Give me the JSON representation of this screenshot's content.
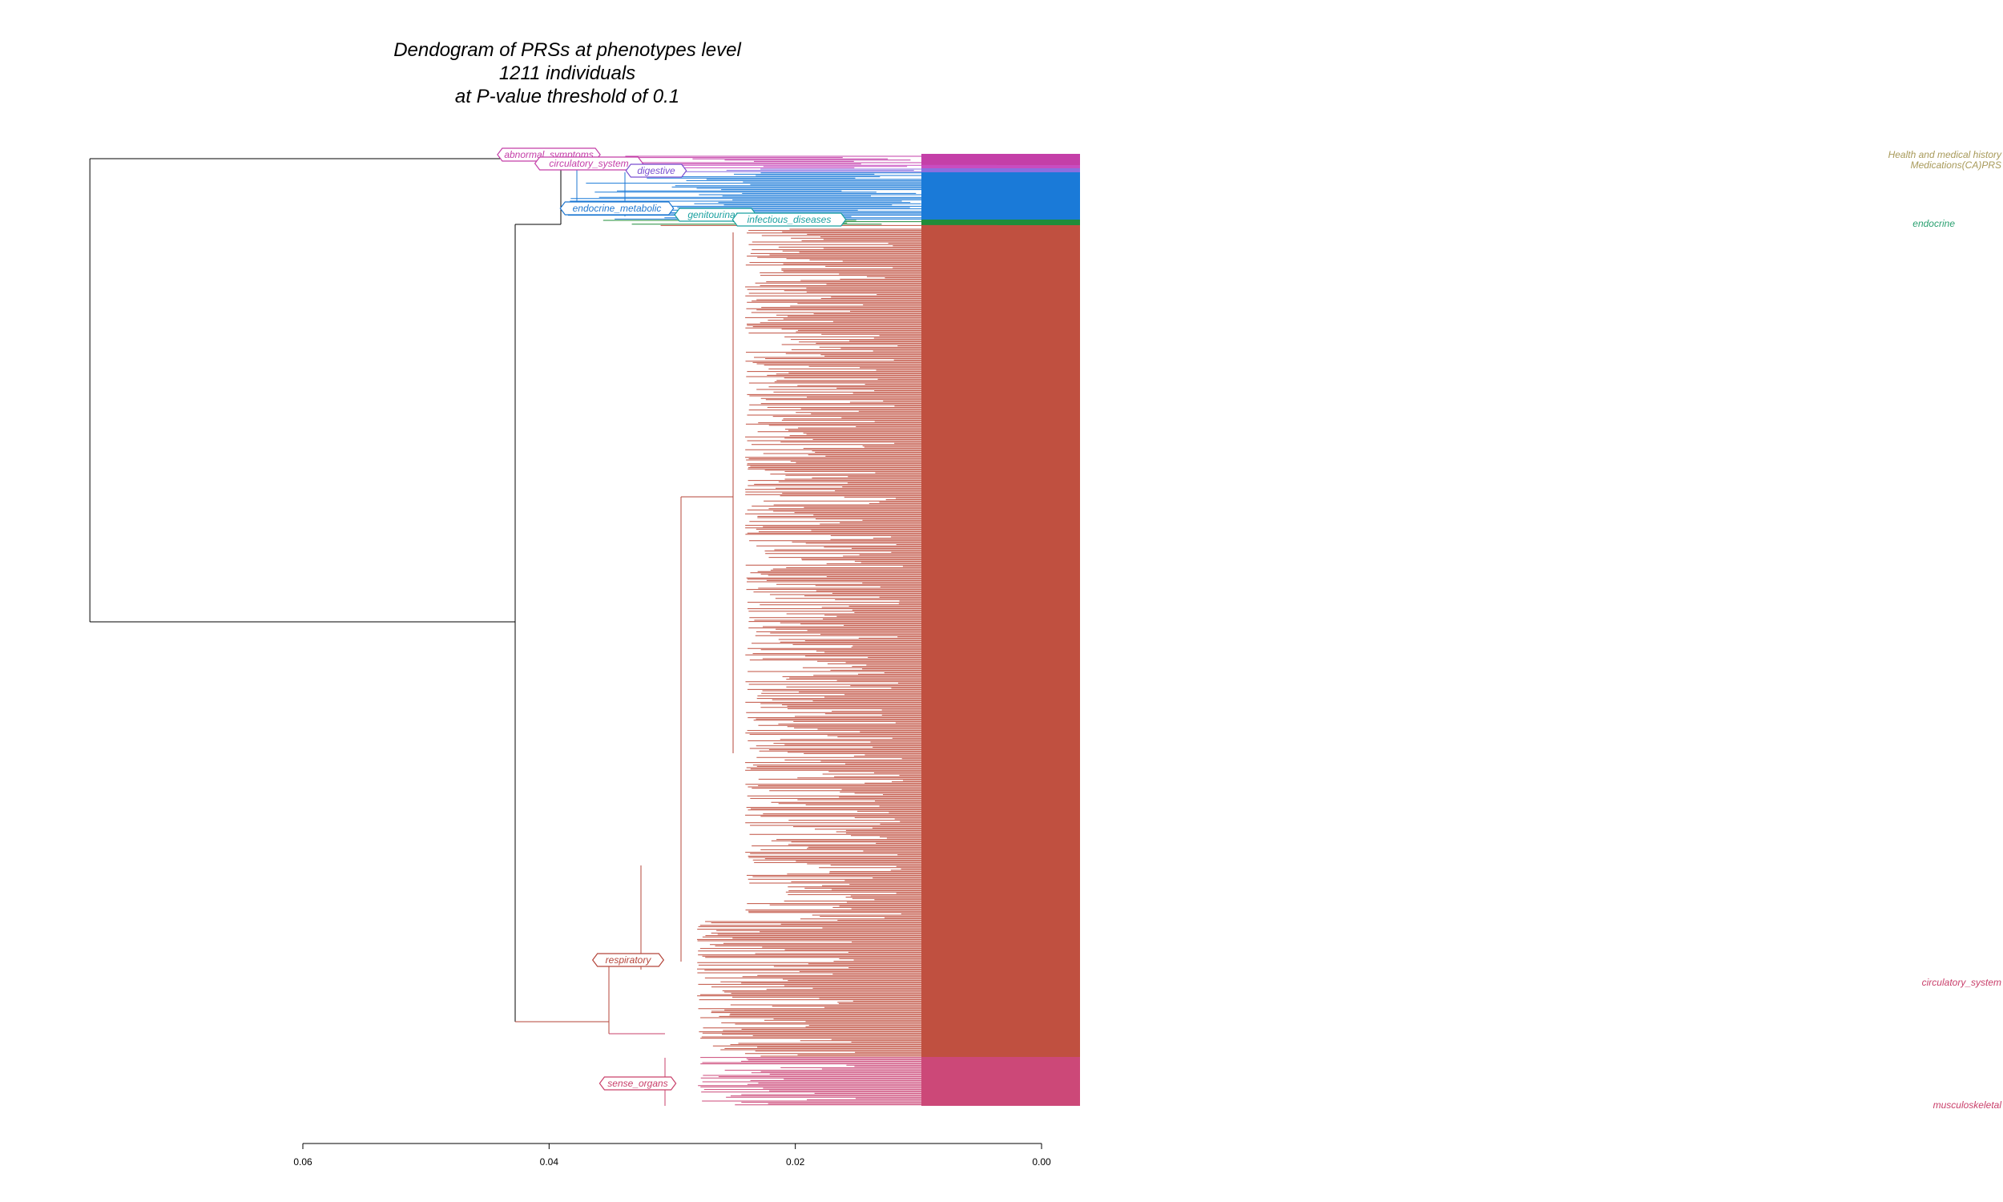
{
  "chart_data": {
    "type": "dendrogram",
    "title_lines": [
      "Dendogram of PRSs at phenotypes level",
      "1211 individuals",
      "at P-value threshold of 0.1"
    ],
    "orientation": "horizontal",
    "x_axis": {
      "ticks": [
        0.06,
        0.04,
        0.02,
        0.0
      ],
      "tick_labels": [
        "0.06",
        "0.04",
        "0.02",
        "0.00"
      ],
      "range": [
        0.06,
        0.0
      ],
      "label": ""
    },
    "root_height": 0.0773,
    "clusters": [
      {
        "name": "abnormal_symptoms",
        "label": "abnormal_symptoms",
        "color": "#c43fa8",
        "height": 0.0443
      },
      {
        "name": "circulatory_system",
        "label": "circulatory_system",
        "color": "#c43fa8",
        "height": 0.0375
      },
      {
        "name": "digestive",
        "label": "digestive",
        "color": "#7a4fd0",
        "height": 0.031
      },
      {
        "name": "endocrine_metabolic",
        "label": "endocrine_metabolic",
        "color": "#1f77d0",
        "height": 0.0395
      },
      {
        "name": "genitourinary",
        "label": "genitourinary",
        "color": "#1aa0a0",
        "height": 0.028
      },
      {
        "name": "infectious_diseases",
        "label": "infectious_diseases",
        "color": "#1aa0a0",
        "height": 0.027
      },
      {
        "name": "respiratory",
        "label": "respiratory",
        "color": "#b5453a",
        "height": 0.0345
      },
      {
        "name": "sense_organs",
        "label": "sense_organs",
        "color": "#c9406b",
        "height": 0.0345
      }
    ],
    "color_bands": [
      {
        "cluster": "abnormal_symptoms",
        "color": "#c43fa8"
      },
      {
        "cluster": "circulatory_system",
        "color": "#c84dc0"
      },
      {
        "cluster": "digestive",
        "color": "#8a6fe0"
      },
      {
        "cluster": "endocrine_metabolic",
        "color": "#1a7ad8"
      },
      {
        "cluster": "genitourinary",
        "color": "#1f8c3a"
      },
      {
        "cluster": "respiratory",
        "color": "#c05040"
      },
      {
        "cluster": "sense_organs",
        "color": "#cc4878"
      }
    ],
    "grid": false,
    "legend": "none"
  },
  "leaf_labels": {
    "visible_fragments": [
      "Health and medical history",
      "Medications(CA)PRS",
      "endocrine",
      "circulatory_system",
      "musculoskeletal"
    ]
  }
}
